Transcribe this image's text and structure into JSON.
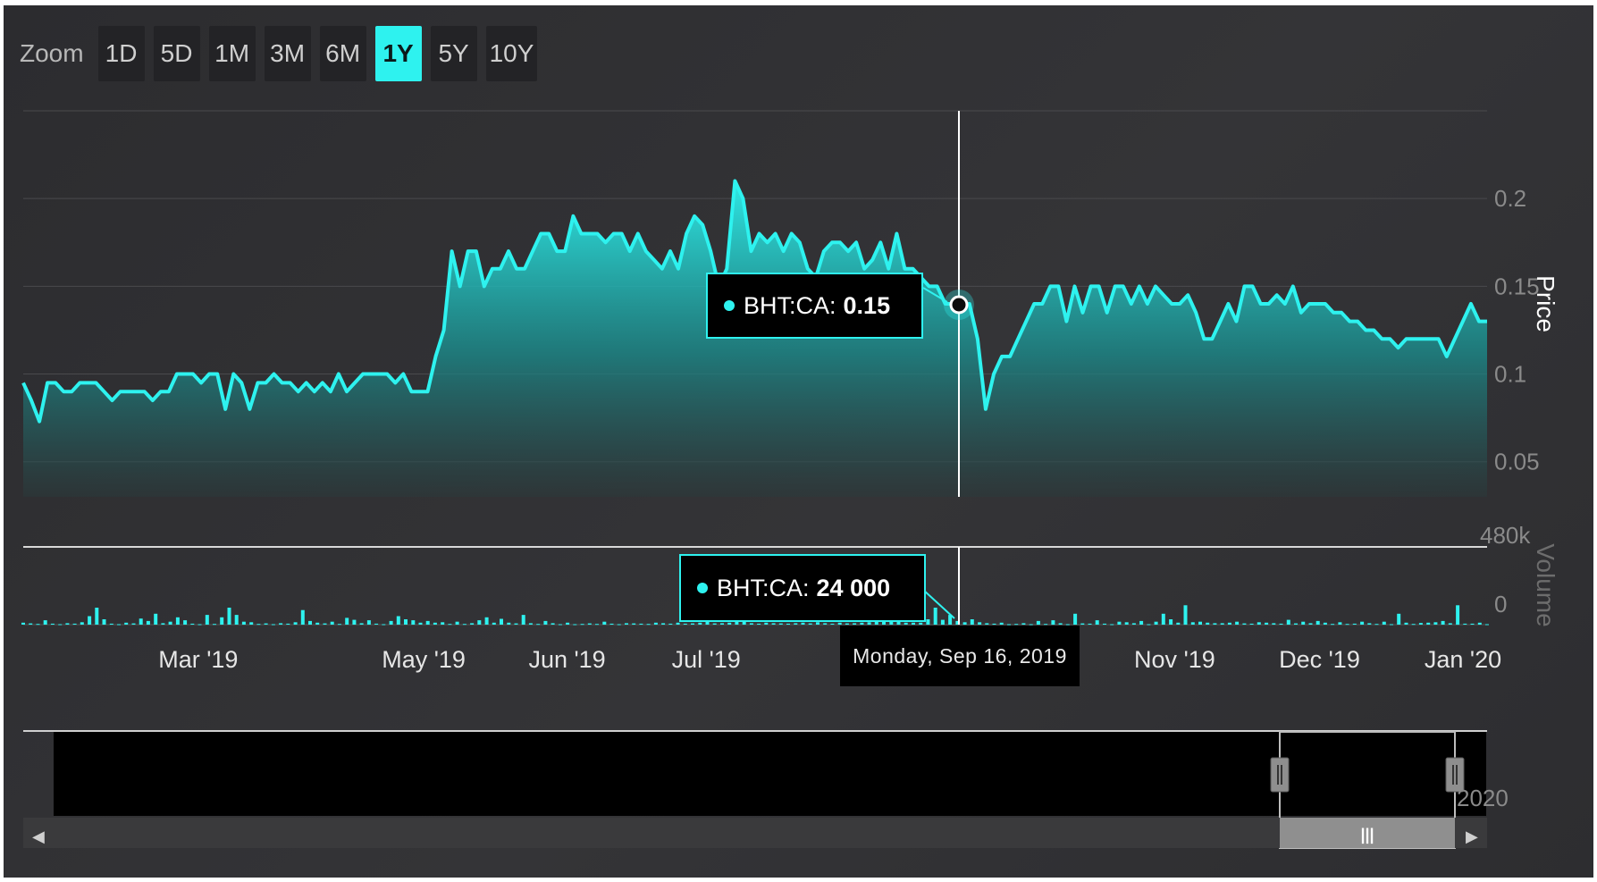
{
  "zoom": {
    "label": "Zoom",
    "buttons": [
      "1D",
      "5D",
      "1M",
      "3M",
      "6M",
      "1Y",
      "5Y",
      "10Y"
    ],
    "active": "1Y"
  },
  "chart_data": {
    "type": "line",
    "symbol": "BHT:CA",
    "price_axis_title": "Price",
    "volume_axis_title": "Volume",
    "price_ticks": [
      "0.05",
      "0.1",
      "0.15",
      "0.2"
    ],
    "price_ylim": [
      0.05,
      0.25
    ],
    "volume_ticks": [
      "0",
      "480k"
    ],
    "volume_ylim": [
      0,
      480000
    ],
    "x_ticks": [
      "Mar '19",
      "May '19",
      "Jun '19",
      "Jul '19",
      "Nov '19",
      "Dec '19",
      "Jan '20"
    ],
    "x_tick_positions": [
      0.111,
      0.265,
      0.363,
      0.458,
      0.778,
      0.877,
      0.975
    ],
    "price_series": [
      0.095,
      0.085,
      0.073,
      0.095,
      0.095,
      0.09,
      0.09,
      0.095,
      0.095,
      0.095,
      0.09,
      0.085,
      0.09,
      0.09,
      0.09,
      0.09,
      0.085,
      0.09,
      0.09,
      0.1,
      0.1,
      0.1,
      0.095,
      0.1,
      0.1,
      0.08,
      0.1,
      0.095,
      0.08,
      0.095,
      0.095,
      0.1,
      0.095,
      0.095,
      0.09,
      0.095,
      0.09,
      0.095,
      0.09,
      0.1,
      0.09,
      0.095,
      0.1,
      0.1,
      0.1,
      0.1,
      0.095,
      0.1,
      0.09,
      0.09,
      0.09,
      0.11,
      0.125,
      0.17,
      0.15,
      0.17,
      0.17,
      0.15,
      0.16,
      0.16,
      0.17,
      0.16,
      0.16,
      0.17,
      0.18,
      0.18,
      0.17,
      0.17,
      0.19,
      0.18,
      0.18,
      0.18,
      0.175,
      0.18,
      0.18,
      0.17,
      0.18,
      0.17,
      0.165,
      0.16,
      0.17,
      0.16,
      0.18,
      0.19,
      0.185,
      0.17,
      0.15,
      0.16,
      0.21,
      0.2,
      0.17,
      0.18,
      0.175,
      0.18,
      0.17,
      0.18,
      0.175,
      0.16,
      0.155,
      0.17,
      0.175,
      0.175,
      0.17,
      0.175,
      0.16,
      0.165,
      0.175,
      0.16,
      0.18,
      0.16,
      0.16,
      0.155,
      0.15,
      0.15,
      0.14,
      0.14,
      0.14,
      0.14,
      0.12,
      0.08,
      0.1,
      0.11,
      0.11,
      0.12,
      0.13,
      0.14,
      0.14,
      0.15,
      0.15,
      0.13,
      0.15,
      0.135,
      0.15,
      0.15,
      0.135,
      0.15,
      0.15,
      0.14,
      0.15,
      0.14,
      0.15,
      0.145,
      0.14,
      0.14,
      0.145,
      0.135,
      0.12,
      0.12,
      0.13,
      0.14,
      0.13,
      0.15,
      0.15,
      0.14,
      0.14,
      0.145,
      0.14,
      0.15,
      0.135,
      0.14,
      0.14,
      0.14,
      0.135,
      0.135,
      0.13,
      0.13,
      0.125,
      0.125,
      0.12,
      0.12,
      0.115,
      0.12,
      0.12,
      0.12,
      0.12,
      0.12,
      0.11,
      0.12,
      0.13,
      0.14,
      0.13,
      0.13
    ],
    "volume_series": [
      8,
      5,
      3,
      18,
      4,
      2,
      6,
      4,
      10,
      35,
      70,
      22,
      4,
      2,
      8,
      5,
      25,
      15,
      45,
      6,
      12,
      30,
      18,
      4,
      2,
      40,
      3,
      30,
      70,
      40,
      12,
      10,
      3,
      5,
      2,
      6,
      4,
      10,
      60,
      15,
      8,
      5,
      12,
      3,
      28,
      20,
      6,
      18,
      4,
      2,
      15,
      35,
      22,
      18,
      8,
      15,
      8,
      10,
      3,
      12,
      3,
      6,
      18,
      30,
      8,
      24,
      8,
      5,
      40,
      6,
      3,
      15,
      6,
      2,
      8,
      2,
      3,
      5,
      3,
      12,
      4,
      2,
      6,
      5,
      4,
      3,
      8,
      6,
      4,
      8,
      4,
      5,
      8,
      20,
      5,
      6,
      8,
      15,
      12,
      6,
      4,
      8,
      6,
      5,
      4,
      6,
      8,
      5,
      10,
      6,
      4,
      8,
      5,
      6,
      8,
      10,
      12,
      40,
      25,
      30,
      8,
      8,
      8,
      22,
      70,
      20,
      40,
      15,
      10,
      22,
      10,
      6,
      4,
      8,
      2,
      3,
      6,
      2,
      15,
      3,
      18,
      6,
      2,
      45,
      5,
      4,
      18,
      4,
      2,
      12,
      10,
      6,
      15,
      2,
      12,
      45,
      22,
      8,
      80,
      10,
      12,
      8,
      6,
      6,
      8,
      12,
      5,
      4,
      10,
      8,
      6,
      4,
      20,
      5,
      12,
      6,
      15,
      8,
      3,
      10,
      3,
      4,
      12,
      6,
      3,
      12,
      2,
      45,
      8,
      3,
      7,
      8,
      10,
      15,
      6,
      80,
      4,
      4,
      8,
      2
    ],
    "volume_units": "k"
  },
  "tooltip": {
    "price_label": "BHT:CA:",
    "price_value": "0.15",
    "volume_label": "BHT:CA:",
    "volume_value": "24 000",
    "date": "Monday, Sep 16, 2019"
  },
  "navigator": {
    "year_label": "2020",
    "left_arrow": "◀",
    "right_arrow": "▶",
    "grip": "|||"
  },
  "colors": {
    "accent": "#2ef2ef",
    "background": "#2e2e30",
    "navigator": "#000000"
  }
}
